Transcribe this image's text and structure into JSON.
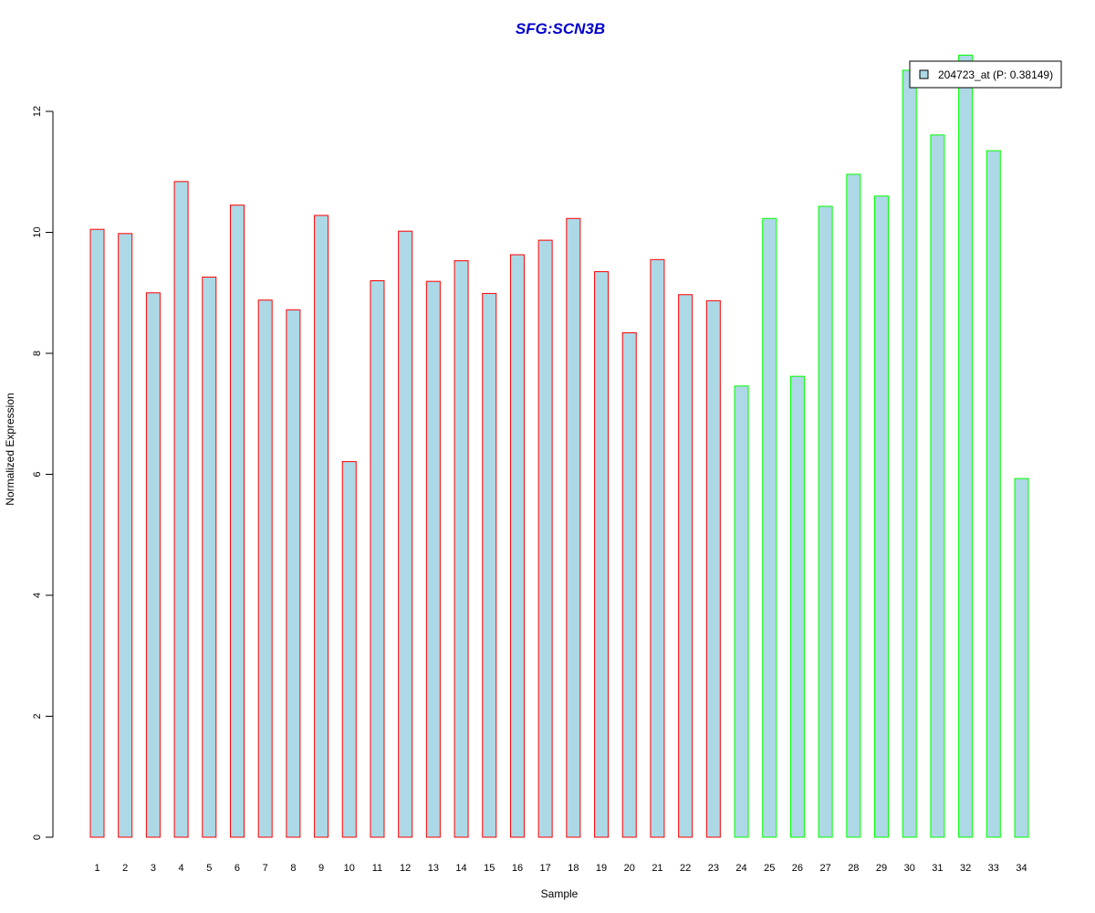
{
  "chart_data": {
    "type": "bar",
    "title": "SFG:SCN3B",
    "xlabel": "Sample",
    "ylabel": "Normalized Expression",
    "categories": [
      "1",
      "2",
      "3",
      "4",
      "5",
      "6",
      "7",
      "8",
      "9",
      "10",
      "11",
      "12",
      "13",
      "14",
      "15",
      "16",
      "17",
      "18",
      "19",
      "20",
      "21",
      "22",
      "23",
      "24",
      "25",
      "26",
      "27",
      "28",
      "29",
      "30",
      "31",
      "32",
      "33",
      "34"
    ],
    "values": [
      10.05,
      9.98,
      9.0,
      10.84,
      9.26,
      10.45,
      8.88,
      8.72,
      10.28,
      6.21,
      9.2,
      10.02,
      9.19,
      9.53,
      8.99,
      9.63,
      9.87,
      10.23,
      9.35,
      8.34,
      9.55,
      8.97,
      8.87,
      7.46,
      10.23,
      7.62,
      10.43,
      10.96,
      10.6,
      12.68,
      11.61,
      12.93,
      11.35,
      5.93
    ],
    "groups": [
      1,
      1,
      1,
      1,
      1,
      1,
      1,
      1,
      1,
      1,
      1,
      1,
      1,
      1,
      1,
      1,
      1,
      1,
      1,
      1,
      1,
      1,
      1,
      2,
      2,
      2,
      2,
      2,
      2,
      2,
      2,
      2,
      2,
      2
    ],
    "group_border_colors": {
      "1": "#ff0000",
      "2": "#00ff00"
    },
    "fill_color": "#add8e6",
    "ylim": [
      0,
      12.9
    ],
    "yticks": [
      0,
      2,
      4,
      6,
      8,
      10,
      12
    ],
    "grid": false,
    "legend": {
      "position": "top-right",
      "entries": [
        {
          "label": "204723_at (P: 0.38149)",
          "color": "#add8e6"
        }
      ]
    }
  }
}
